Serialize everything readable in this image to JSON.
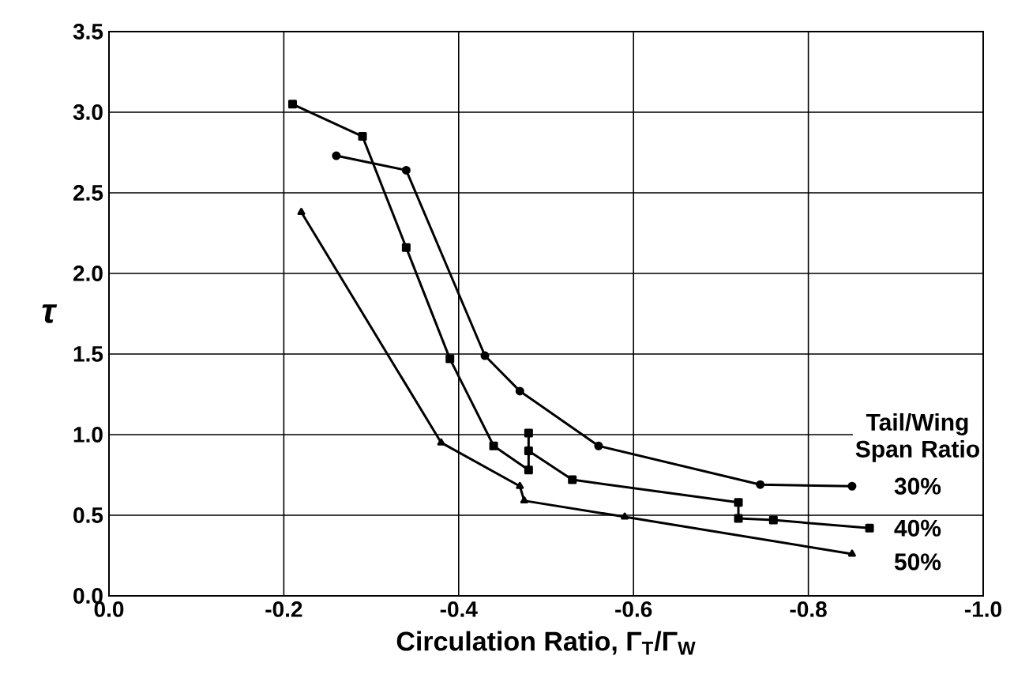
{
  "chart_data": {
    "type": "line",
    "xlabel": "Circulation Ratio, Γ$_{T}$/Γ$_{W}$",
    "ylabel": "τ",
    "legend_title": "Tail/Wing Span Ratio",
    "xlim": [
      0,
      -1.0
    ],
    "ylim": [
      0,
      3.5
    ],
    "xticks": [
      {
        "value": 0,
        "label": "0.0"
      },
      {
        "value": -0.2,
        "label": "-0.2"
      },
      {
        "value": -0.4,
        "label": "-0.4"
      },
      {
        "value": -0.6,
        "label": "-0.6"
      },
      {
        "value": -0.8,
        "label": "-0.8"
      },
      {
        "value": -1.0,
        "label": "-1.0"
      }
    ],
    "yticks": [
      {
        "value": 0,
        "label": "0.0"
      },
      {
        "value": 0.5,
        "label": "0.5"
      },
      {
        "value": 1.0,
        "label": "1.0"
      },
      {
        "value": 1.5,
        "label": "1.5"
      },
      {
        "value": 2.0,
        "label": "2.0"
      },
      {
        "value": 2.5,
        "label": "2.5"
      },
      {
        "value": 3.0,
        "label": "3.0"
      },
      {
        "value": 3.5,
        "label": "3.5"
      }
    ],
    "grid": true,
    "line_style": "solid",
    "series": [
      {
        "name": "30%",
        "color": "#000000",
        "marker": "circle",
        "x": [
          -0.26,
          -0.34,
          -0.43,
          -0.47,
          -0.56,
          -0.745,
          -0.85
        ],
        "values": [
          2.73,
          2.64,
          1.49,
          1.27,
          0.93,
          0.69,
          0.68
        ]
      },
      {
        "name": "40%",
        "color": "#000000",
        "marker": "square",
        "x": [
          -0.21,
          -0.29,
          -0.34,
          -0.39,
          -0.44,
          -0.48,
          -0.48,
          -0.48,
          -0.53,
          -0.72,
          -0.72,
          -0.76,
          -0.87
        ],
        "values": [
          3.05,
          2.85,
          2.16,
          1.47,
          0.93,
          0.78,
          1.01,
          0.9,
          0.72,
          0.58,
          0.48,
          0.47,
          0.42
        ]
      },
      {
        "name": "50%",
        "color": "#000000",
        "marker": "triangle",
        "x": [
          -0.22,
          -0.38,
          -0.47,
          -0.475,
          -0.59,
          -0.85
        ],
        "values": [
          2.38,
          0.95,
          0.68,
          0.59,
          0.49,
          0.26
        ]
      }
    ]
  }
}
